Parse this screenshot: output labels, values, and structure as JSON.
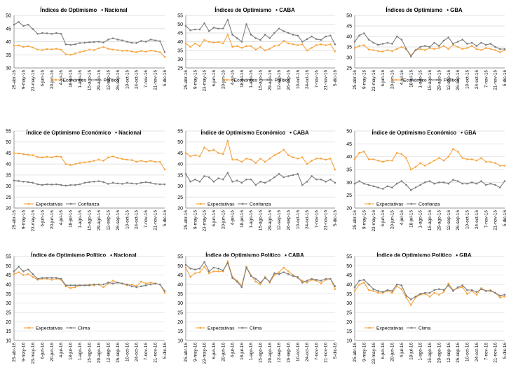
{
  "colors": {
    "orange": "#F7A541",
    "gray": "#7F7F7F",
    "grid": "#D9D9D9",
    "axis": "#808080",
    "text": "#000000"
  },
  "x_labels": [
    "25-abr-16",
    "9-may-16",
    "23-may-16",
    "6-jun-16",
    "20-jun-16",
    "4-jul-16",
    "18-jul-16",
    "1-ago-16",
    "15-ago-16",
    "29-ago-16",
    "12-sep-16",
    "26-sep-16",
    "10-oct-16",
    "24-oct-16",
    "7-nov-16",
    "21-nov-16",
    "5-dic-16"
  ],
  "chart_data": [
    {
      "type": "line",
      "title": "Índices de Optimismo",
      "region": "Nacional",
      "yticks": [
        30,
        35,
        40,
        45,
        50
      ],
      "ylim": [
        30,
        50
      ],
      "n": 33,
      "series": [
        {
          "name": "Económico",
          "color": "orange",
          "values": [
            38.5,
            38.6,
            38.0,
            38.3,
            37.8,
            37.0,
            36.8,
            37.2,
            37.1,
            37.3,
            37.0,
            35.2,
            35.0,
            35.5,
            36.0,
            36.5,
            37.0,
            36.8,
            37.5,
            38.0,
            37.3,
            37.0,
            36.8,
            36.5,
            36.6,
            36.3,
            36.0,
            36.5,
            36.2,
            36.6,
            36.4,
            36.0,
            34.2
          ]
        },
        {
          "name": "Político",
          "color": "gray",
          "values": [
            46.5,
            47.5,
            46.0,
            46.5,
            44.8,
            43.0,
            43.3,
            43.2,
            43.0,
            43.3,
            43.0,
            39.0,
            38.8,
            39.0,
            39.5,
            39.6,
            39.8,
            39.9,
            40.0,
            39.7,
            40.8,
            41.3,
            40.8,
            40.5,
            40.0,
            39.6,
            39.5,
            40.3,
            40.0,
            40.8,
            40.5,
            40.2,
            36.0
          ]
        }
      ]
    },
    {
      "type": "line",
      "title": "Índices de Optimismo",
      "region": "CABA",
      "yticks": [
        25,
        30,
        35,
        40,
        45,
        50,
        55
      ],
      "ylim": [
        25,
        55
      ],
      "n": 33,
      "series": [
        {
          "name": "Económico",
          "color": "orange",
          "values": [
            39.0,
            37.0,
            39.0,
            37.5,
            41.0,
            40.0,
            39.5,
            39.8,
            39.0,
            44.0,
            37.0,
            37.5,
            36.5,
            37.5,
            37.5,
            35.5,
            37.0,
            35.0,
            36.0,
            37.5,
            38.0,
            40.5,
            39.0,
            38.5,
            38.0,
            38.5,
            35.0,
            36.5,
            38.0,
            38.5,
            38.0,
            38.5,
            34.5
          ]
        },
        {
          "name": "Político",
          "color": "gray",
          "values": [
            49.0,
            46.5,
            47.0,
            47.0,
            50.5,
            46.0,
            48.0,
            47.5,
            47.5,
            52.5,
            44.0,
            42.0,
            40.0,
            50.0,
            44.0,
            42.0,
            41.0,
            44.0,
            42.0,
            45.0,
            47.5,
            46.0,
            45.0,
            44.0,
            43.5,
            40.0,
            41.5,
            43.0,
            41.5,
            41.0,
            43.0,
            43.5,
            38.5
          ]
        }
      ]
    },
    {
      "type": "line",
      "title": "Índices de Optimismo",
      "region": "GBA",
      "yticks": [
        25,
        30,
        35,
        40,
        45,
        50
      ],
      "ylim": [
        25,
        50
      ],
      "n": 33,
      "series": [
        {
          "name": "Económico",
          "color": "orange",
          "values": [
            34.5,
            35.5,
            35.8,
            33.8,
            33.5,
            33.0,
            32.8,
            33.5,
            33.0,
            34.0,
            35.0,
            34.0,
            31.0,
            33.5,
            34.0,
            33.5,
            34.5,
            34.0,
            34.5,
            35.5,
            34.0,
            36.0,
            35.0,
            34.0,
            34.5,
            35.5,
            34.0,
            33.5,
            34.5,
            34.0,
            33.5,
            32.5,
            33.5
          ]
        },
        {
          "name": "Político",
          "color": "gray",
          "values": [
            37.5,
            40.5,
            41.5,
            38.5,
            37.0,
            36.0,
            36.5,
            37.0,
            36.5,
            40.0,
            38.5,
            34.0,
            30.5,
            33.5,
            35.0,
            35.5,
            35.0,
            37.0,
            35.5,
            38.0,
            39.5,
            36.5,
            37.5,
            38.5,
            36.5,
            37.0,
            35.5,
            37.0,
            36.0,
            36.5,
            35.0,
            34.0,
            34.0
          ]
        }
      ]
    },
    {
      "type": "line",
      "title": "Índice de Optimismo Económico",
      "region": "Nacional",
      "yticks": [
        20,
        25,
        30,
        35,
        40,
        45,
        50,
        55
      ],
      "ylim": [
        20,
        55
      ],
      "n": 33,
      "series": [
        {
          "name": "Expectativas",
          "color": "orange",
          "values": [
            45.0,
            44.8,
            44.5,
            44.2,
            44.0,
            43.2,
            43.0,
            43.3,
            43.0,
            43.5,
            43.2,
            40.0,
            39.5,
            40.0,
            40.5,
            40.8,
            41.0,
            41.5,
            42.0,
            41.5,
            43.0,
            43.5,
            42.8,
            42.3,
            42.0,
            41.8,
            41.0,
            41.5,
            41.0,
            41.5,
            41.0,
            41.0,
            37.5
          ]
        },
        {
          "name": "Confianza",
          "color": "gray",
          "values": [
            32.5,
            32.3,
            32.0,
            31.8,
            31.5,
            30.8,
            30.5,
            30.8,
            30.7,
            30.8,
            30.5,
            30.2,
            30.5,
            30.5,
            30.8,
            31.5,
            31.8,
            32.0,
            32.2,
            31.8,
            31.0,
            31.5,
            31.2,
            31.0,
            31.5,
            31.2,
            31.0,
            31.5,
            31.8,
            31.5,
            31.0,
            30.8,
            30.8
          ]
        }
      ]
    },
    {
      "type": "line",
      "title": "Índice de Optimismo Económico",
      "region": "CABA",
      "yticks": [
        20,
        25,
        30,
        35,
        40,
        45,
        50,
        55
      ],
      "ylim": [
        20,
        55
      ],
      "n": 33,
      "series": [
        {
          "name": "Expectativas",
          "color": "orange",
          "values": [
            45.0,
            43.5,
            44.0,
            43.5,
            47.5,
            46.0,
            46.5,
            45.0,
            44.5,
            50.5,
            42.0,
            42.0,
            41.0,
            42.5,
            42.0,
            40.5,
            42.5,
            41.0,
            42.5,
            44.0,
            45.0,
            46.5,
            44.0,
            43.0,
            42.5,
            43.0,
            40.0,
            41.5,
            42.5,
            42.5,
            42.0,
            42.5,
            37.5
          ]
        },
        {
          "name": "Confianza",
          "color": "gray",
          "values": [
            35.5,
            32.0,
            33.0,
            32.0,
            34.5,
            34.0,
            32.0,
            33.5,
            33.0,
            36.0,
            32.0,
            32.5,
            31.5,
            33.0,
            33.0,
            30.5,
            32.0,
            31.5,
            32.5,
            34.0,
            35.5,
            34.0,
            34.5,
            35.0,
            35.5,
            30.5,
            32.0,
            34.5,
            33.0,
            33.0,
            32.0,
            33.0,
            31.5
          ]
        }
      ]
    },
    {
      "type": "line",
      "title": "Índice de Optimismo Económico",
      "region": "GBA",
      "yticks": [
        20,
        25,
        30,
        35,
        40,
        45,
        50
      ],
      "ylim": [
        20,
        50
      ],
      "n": 33,
      "series": [
        {
          "name": "Expectativas",
          "color": "orange",
          "values": [
            39.0,
            41.5,
            42.0,
            39.0,
            39.0,
            38.5,
            38.0,
            38.5,
            38.5,
            41.5,
            41.0,
            39.5,
            35.0,
            36.0,
            37.5,
            36.5,
            37.5,
            38.5,
            39.5,
            38.5,
            40.0,
            43.0,
            42.0,
            39.5,
            39.0,
            39.0,
            38.5,
            39.5,
            38.0,
            38.0,
            37.5,
            36.5,
            36.5
          ]
        },
        {
          "name": "Confianza",
          "color": "gray",
          "values": [
            29.5,
            30.5,
            29.5,
            29.0,
            28.5,
            28.0,
            27.5,
            28.5,
            28.0,
            29.5,
            30.5,
            29.0,
            27.0,
            28.0,
            29.0,
            30.0,
            30.5,
            29.5,
            30.0,
            30.0,
            29.5,
            31.0,
            30.5,
            29.5,
            29.5,
            30.0,
            29.5,
            30.5,
            29.0,
            29.5,
            29.0,
            28.0,
            30.5
          ]
        }
      ]
    },
    {
      "type": "line",
      "title": "Índice de Optimismo Político",
      "region": "Nacional",
      "yticks": [
        10,
        15,
        20,
        25,
        30,
        35,
        40,
        45,
        50,
        55
      ],
      "ylim": [
        10,
        55
      ],
      "n": 33,
      "series": [
        {
          "name": "Expectativas",
          "color": "orange",
          "values": [
            45.5,
            46.5,
            45.0,
            45.5,
            44.0,
            42.5,
            43.0,
            43.0,
            42.5,
            43.0,
            42.5,
            39.0,
            38.0,
            38.5,
            39.5,
            39.5,
            40.0,
            39.5,
            40.0,
            38.5,
            40.5,
            42.0,
            41.0,
            40.5,
            39.5,
            40.0,
            39.0,
            41.5,
            40.5,
            41.0,
            40.5,
            40.0,
            35.5
          ]
        },
        {
          "name": "Clima",
          "color": "gray",
          "values": [
            47.0,
            49.5,
            47.0,
            48.0,
            45.5,
            43.0,
            43.5,
            43.5,
            43.5,
            43.5,
            43.0,
            39.5,
            39.5,
            39.5,
            39.5,
            39.5,
            39.5,
            40.0,
            40.0,
            40.0,
            41.0,
            40.5,
            41.0,
            40.5,
            40.0,
            39.0,
            38.5,
            39.0,
            39.5,
            40.0,
            40.5,
            40.0,
            36.5
          ]
        }
      ]
    },
    {
      "type": "line",
      "title": "Índice de Optimismo Político",
      "region": "CABA",
      "yticks": [
        10,
        15,
        20,
        25,
        30,
        35,
        40,
        45,
        50,
        55
      ],
      "ylim": [
        10,
        55
      ],
      "n": 33,
      "series": [
        {
          "name": "Expectativas",
          "color": "orange",
          "values": [
            49.0,
            44.0,
            46.0,
            46.5,
            49.5,
            46.0,
            47.0,
            47.0,
            47.0,
            52.5,
            44.0,
            42.0,
            39.5,
            49.5,
            45.0,
            41.5,
            40.0,
            44.0,
            41.0,
            45.0,
            46.5,
            49.0,
            47.0,
            45.0,
            43.5,
            42.0,
            41.0,
            42.5,
            42.0,
            40.5,
            42.5,
            43.0,
            37.5
          ]
        },
        {
          "name": "Clima",
          "color": "gray",
          "values": [
            50.5,
            48.5,
            48.0,
            48.5,
            52.0,
            47.0,
            49.0,
            48.5,
            47.5,
            51.5,
            43.5,
            41.5,
            38.5,
            49.0,
            44.5,
            43.0,
            41.0,
            43.5,
            41.5,
            46.0,
            45.5,
            46.5,
            45.5,
            44.5,
            44.0,
            41.0,
            42.0,
            43.0,
            42.5,
            42.0,
            43.0,
            43.0,
            39.0
          ]
        }
      ]
    },
    {
      "type": "line",
      "title": "Índice de Optimismo Político",
      "region": "GBA",
      "yticks": [
        10,
        15,
        20,
        25,
        30,
        35,
        40,
        45,
        50,
        55
      ],
      "ylim": [
        10,
        55
      ],
      "n": 33,
      "series": [
        {
          "name": "Expectativas",
          "color": "orange",
          "values": [
            36.5,
            40.0,
            41.0,
            37.0,
            36.5,
            35.5,
            35.5,
            36.5,
            35.5,
            39.0,
            37.5,
            33.0,
            29.0,
            33.0,
            34.5,
            35.0,
            33.5,
            35.5,
            34.5,
            36.0,
            40.5,
            37.0,
            38.0,
            38.5,
            35.0,
            36.5,
            34.5,
            38.0,
            36.5,
            37.0,
            35.5,
            33.0,
            33.5
          ]
        },
        {
          "name": "Clima",
          "color": "gray",
          "values": [
            38.5,
            42.0,
            42.5,
            40.0,
            37.5,
            36.5,
            36.0,
            37.0,
            36.5,
            40.0,
            39.5,
            34.0,
            32.0,
            33.5,
            35.0,
            35.5,
            35.5,
            37.0,
            37.5,
            37.0,
            39.5,
            36.5,
            38.5,
            39.5,
            37.0,
            37.0,
            36.0,
            37.5,
            36.5,
            36.5,
            35.5,
            34.0,
            34.5
          ]
        }
      ]
    }
  ]
}
